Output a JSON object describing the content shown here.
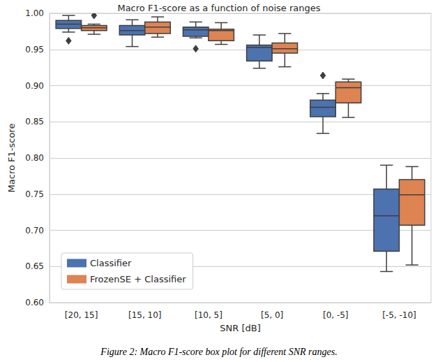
{
  "chart_data": {
    "type": "boxplot",
    "title": "Macro F1-score as a function of noise ranges",
    "caption": "Figure 2: Macro F1-score box plot for different SNR ranges.",
    "x_label": "SNR [dB]",
    "y_label": "Macro F1-score",
    "categories": [
      "[20, 15]",
      "[15, 10]",
      "[10, 5]",
      "[5, 0]",
      "[0, -5]",
      "[-5, -10]"
    ],
    "series": [
      {
        "name": "Classifier",
        "color": "#4c72b0",
        "values": [
          [
            0.974,
            0.979,
            0.985,
            0.99,
            0.997
          ],
          [
            0.954,
            0.97,
            0.976,
            0.983,
            0.991
          ],
          [
            0.966,
            0.968,
            0.977,
            0.981,
            0.988
          ],
          [
            0.924,
            0.934,
            0.953,
            0.956,
            0.97
          ],
          [
            0.834,
            0.857,
            0.87,
            0.88,
            0.889
          ],
          [
            0.643,
            0.671,
            0.72,
            0.757,
            0.79
          ]
        ],
        "outliers": [
          {
            "category": "[20, 15]",
            "value": 0.962
          },
          {
            "category": "[10, 5]",
            "value": 0.951
          },
          {
            "category": "[0, -5]",
            "value": 0.914
          }
        ]
      },
      {
        "name": "FrozenSE + Classifier",
        "color": "#dd8452",
        "values": [
          [
            0.971,
            0.976,
            0.98,
            0.983,
            0.985
          ],
          [
            0.967,
            0.972,
            0.981,
            0.988,
            0.995
          ],
          [
            0.957,
            0.962,
            0.976,
            0.978,
            0.987
          ],
          [
            0.926,
            0.945,
            0.951,
            0.959,
            0.972
          ],
          [
            0.856,
            0.876,
            0.897,
            0.905,
            0.909
          ],
          [
            0.652,
            0.707,
            0.749,
            0.77,
            0.788
          ]
        ],
        "outliers": [
          {
            "category": "[20, 15]",
            "value": 0.997
          }
        ]
      }
    ],
    "ylim": [
      0.6,
      1.0
    ],
    "yticks": [
      {
        "value": 0.6,
        "label": "0.60"
      },
      {
        "value": 0.65,
        "label": "0.65"
      },
      {
        "value": 0.7,
        "label": "0.70"
      },
      {
        "value": 0.75,
        "label": "0.75"
      },
      {
        "value": 0.8,
        "label": "0.80"
      },
      {
        "value": 0.85,
        "label": "0.85"
      },
      {
        "value": 0.9,
        "label": "0.90"
      },
      {
        "value": 0.95,
        "label": "0.95"
      },
      {
        "value": 1.0,
        "label": "1.00"
      }
    ],
    "grid": true,
    "legend": "lower left"
  }
}
